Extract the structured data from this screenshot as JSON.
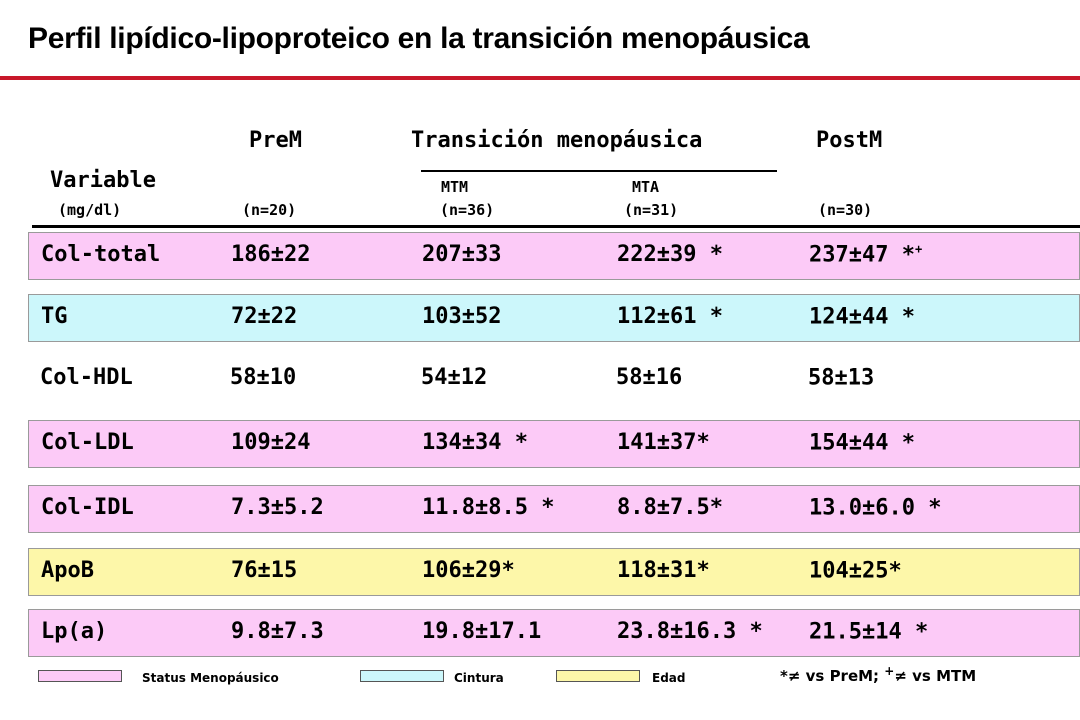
{
  "title": "Perfil lipídico-lipoproteico en la transición menopáusica",
  "header": {
    "variable": "Variable",
    "unit": "(mg/dl)",
    "prem": "PreM",
    "transition": "Transición menopáusica",
    "postm": "PostM",
    "mtm": "MTM",
    "mta": "MTA",
    "n_prem": "(n=20)",
    "n_mtm": "(n=36)",
    "n_mta": "(n=31)",
    "n_postm": "(n=30)"
  },
  "rows": [
    {
      "label": "Col-total",
      "prem": "186±22",
      "mtm": "207±33",
      "mta": "222±39 *",
      "postm": "237±47 *",
      "postm_sup": "+",
      "color": "pink"
    },
    {
      "label": "TG",
      "prem": "72±22",
      "mtm": "103±52",
      "mta": "112±61 *",
      "postm": "124±44 *",
      "postm_sup": "",
      "color": "cyan"
    },
    {
      "label": "Col-HDL",
      "prem": "58±10",
      "mtm": "54±12",
      "mta": "58±16",
      "postm": "58±13",
      "postm_sup": "",
      "color": "none"
    },
    {
      "label": "Col-LDL",
      "prem": "109±24",
      "mtm": "134±34 *",
      "mta": "141±37*",
      "postm": "154±44 *",
      "postm_sup": "",
      "color": "pink"
    },
    {
      "label": "Col-IDL",
      "prem": "7.3±5.2",
      "mtm": "11.8±8.5 *",
      "mta": "8.8±7.5*",
      "postm": "13.0±6.0 *",
      "postm_sup": "",
      "color": "pink"
    },
    {
      "label": "ApoB",
      "prem": "76±15",
      "mtm": "106±29*",
      "mta": "118±31*",
      "postm": "104±25*",
      "postm_sup": "",
      "color": "yellow"
    },
    {
      "label": "Lp(a)",
      "prem": "9.8±7.3",
      "mtm": "19.8±17.1",
      "mta": "23.8±16.3 *",
      "postm": "21.5±14 *",
      "postm_sup": "",
      "color": "pink"
    }
  ],
  "legend": {
    "status": "Status Menopáusico",
    "cintura": "Cintura",
    "edad": "Edad",
    "note_a": "*≠ vs PreM; ",
    "note_sup": "+",
    "note_b": "≠ vs MTM",
    "colors": {
      "pink": "#fccaf7",
      "cyan": "#ccf7fb",
      "yellow": "#fdf7a9"
    }
  }
}
